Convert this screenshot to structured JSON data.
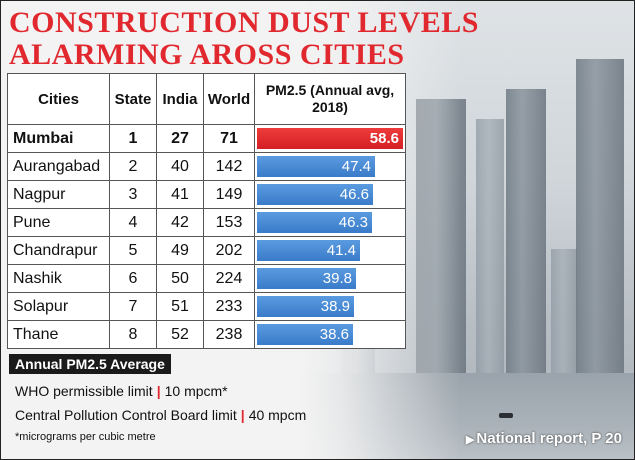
{
  "chart_data": {
    "type": "table",
    "title_line1": "CONSTRUCTION DUST LEVELS",
    "title_line2": "ALARMING AROSS CITIES",
    "columns": [
      "Cities",
      "State",
      "India",
      "World",
      "PM2.5 (Annual avg, 2018)"
    ],
    "rows": [
      {
        "city": "Mumbai",
        "state": "1",
        "india": "27",
        "world": "71",
        "pm25": 58.6,
        "highlight": true
      },
      {
        "city": "Aurangabad",
        "state": "2",
        "india": "40",
        "world": "142",
        "pm25": 47.4,
        "highlight": false
      },
      {
        "city": "Nagpur",
        "state": "3",
        "india": "41",
        "world": "149",
        "pm25": 46.6,
        "highlight": false
      },
      {
        "city": "Pune",
        "state": "4",
        "india": "42",
        "world": "153",
        "pm25": 46.3,
        "highlight": false
      },
      {
        "city": "Chandrapur",
        "state": "5",
        "india": "49",
        "world": "202",
        "pm25": 41.4,
        "highlight": false
      },
      {
        "city": "Nashik",
        "state": "6",
        "india": "50",
        "world": "224",
        "pm25": 39.8,
        "highlight": false
      },
      {
        "city": "Solapur",
        "state": "7",
        "india": "51",
        "world": "233",
        "pm25": 38.9,
        "highlight": false
      },
      {
        "city": "Thane",
        "state": "8",
        "india": "52",
        "world": "238",
        "pm25": 38.6,
        "highlight": false
      }
    ],
    "bar_max": 58.6,
    "colors": {
      "highlight_bar": "#d41f26",
      "bar": "#3a7bc9",
      "title": "#e0282e"
    }
  },
  "notes": {
    "heading": "Annual PM2.5 Average",
    "who_label": "WHO permissible limit",
    "who_value": "10 mpcm*",
    "cpcb_label": "Central Pollution Control Board limit",
    "cpcb_value": "40 mpcm",
    "footnote": "*micrograms per cubic metre",
    "separator": "|"
  },
  "footer": {
    "arrow": "▶",
    "text": "National report, P 20"
  }
}
